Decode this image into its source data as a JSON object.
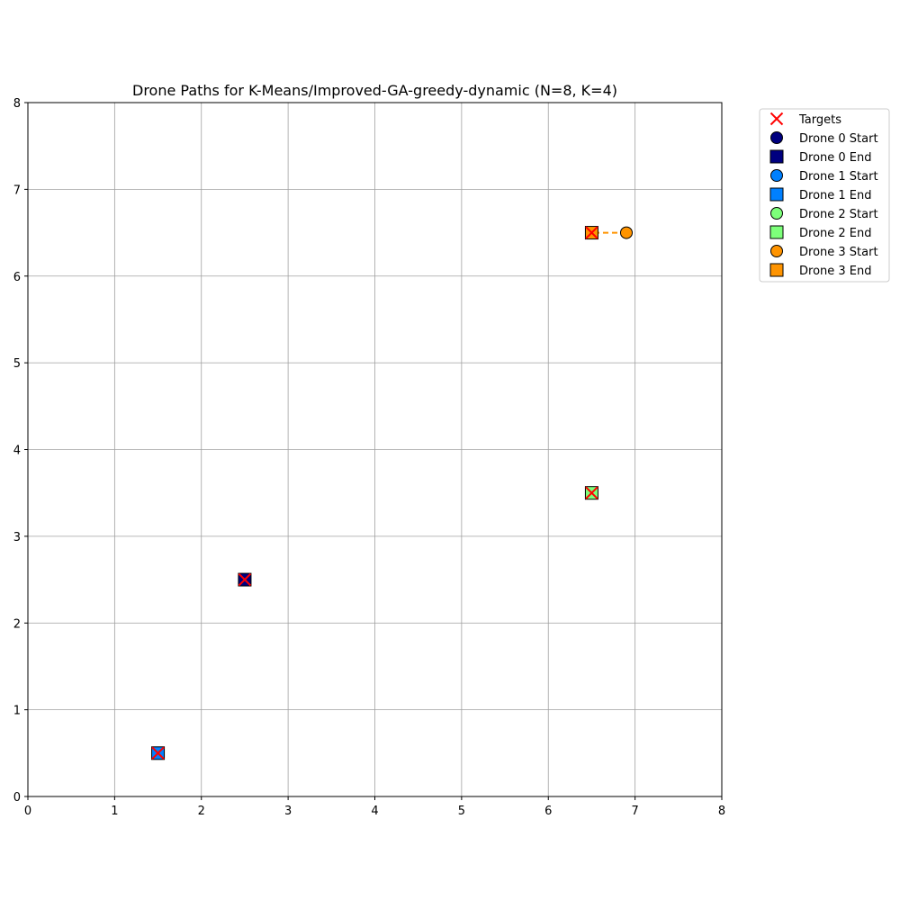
{
  "chart_data": {
    "type": "scatter",
    "title": "Drone Paths for K-Means/Improved-GA-greedy-dynamic (N=8, K=4)",
    "xlabel": "",
    "ylabel": "",
    "xlim": [
      0,
      8
    ],
    "ylim": [
      0,
      8
    ],
    "xticks": [
      0,
      1,
      2,
      3,
      4,
      5,
      6,
      7,
      8
    ],
    "yticks": [
      0,
      1,
      2,
      3,
      4,
      5,
      6,
      7,
      8
    ],
    "grid": true,
    "legend_position": "outside-top-right",
    "targets": {
      "name": "Targets",
      "color": "#ff0000",
      "points": [
        [
          6.5,
          6.5
        ],
        [
          6.5,
          3.5
        ],
        [
          2.5,
          2.5
        ],
        [
          1.5,
          0.5
        ]
      ]
    },
    "drones": [
      {
        "id": 0,
        "start_name": "Drone 0 Start",
        "end_name": "Drone 0 End",
        "color": "#00007f",
        "start": [
          2.5,
          2.5
        ],
        "end": [
          2.5,
          2.5
        ],
        "path": []
      },
      {
        "id": 1,
        "start_name": "Drone 1 Start",
        "end_name": "Drone 1 End",
        "color": "#0080ff",
        "start": [
          1.5,
          0.5
        ],
        "end": [
          1.5,
          0.5
        ],
        "path": []
      },
      {
        "id": 2,
        "start_name": "Drone 2 Start",
        "end_name": "Drone 2 End",
        "color": "#7dff7a",
        "start": [
          6.5,
          3.5
        ],
        "end": [
          6.5,
          3.5
        ],
        "path": []
      },
      {
        "id": 3,
        "start_name": "Drone 3 Start",
        "end_name": "Drone 3 End",
        "color": "#ff9400",
        "start": [
          6.9,
          6.5
        ],
        "end": [
          6.5,
          6.5
        ],
        "path": [
          [
            6.9,
            6.5
          ],
          [
            6.5,
            6.5
          ]
        ]
      }
    ]
  }
}
